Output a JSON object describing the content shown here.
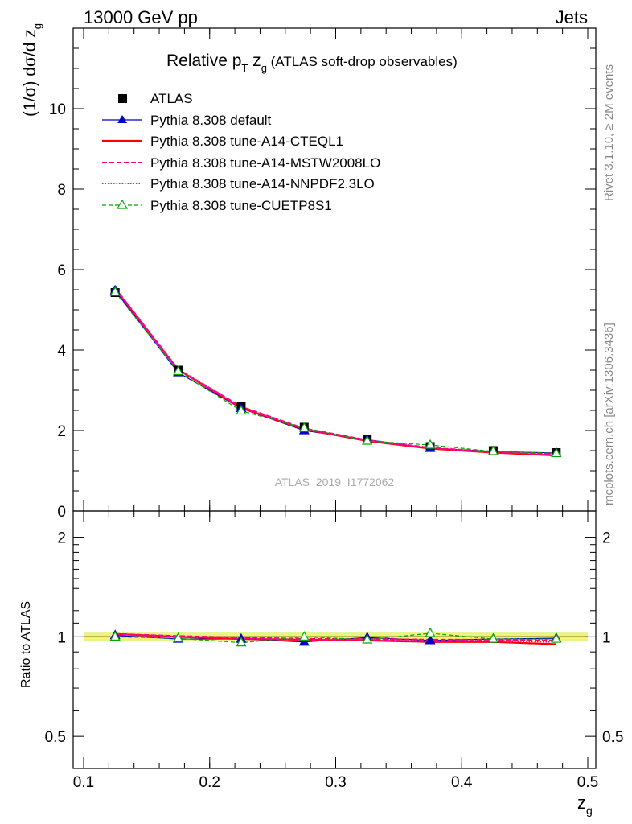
{
  "header": {
    "left": "13000 GeV pp",
    "right": "Jets"
  },
  "side_labels": {
    "rivet": "Rivet 3.1.10, ≥ 2M events",
    "mcplots": "mcplots.cern.ch [arXiv:1306.3436]"
  },
  "chart_data": {
    "type": "line",
    "title": "Relative pT zg (ATLAS soft-drop observables)",
    "title_parts": {
      "main": "Relative p",
      "sub_T": "T",
      "z": " z",
      "sub_g": "g",
      "tail": " (ATLAS soft-drop observables)"
    },
    "analysis_id": "ATLAS_2019_I1772062",
    "xlabel": "z_g",
    "xlabel_parts": {
      "main": "z",
      "sub": "g"
    },
    "ylabel": "(1/σ) dσ/d z_g",
    "ylabel_parts": {
      "main": "(1/σ) dσ/d z",
      "sub": "g"
    },
    "ratio_ylabel": "Ratio to ATLAS",
    "xlim": [
      0.1,
      0.5
    ],
    "ylim": [
      0,
      12
    ],
    "ratio_ylim": [
      0.4,
      2.4
    ],
    "x_ticks": [
      "0.1",
      "0.2",
      "0.3",
      "0.4",
      "0.5"
    ],
    "x_tick_values": [
      0.1,
      0.2,
      0.3,
      0.4,
      0.5
    ],
    "y_ticks": [
      "0",
      "2",
      "4",
      "6",
      "8",
      "10"
    ],
    "y_tick_values": [
      0,
      2,
      4,
      6,
      8,
      10
    ],
    "ratio_ticks": [
      "0.5",
      "1",
      "2"
    ],
    "ratio_tick_values": [
      0.5,
      1,
      2
    ],
    "x": [
      0.125,
      0.175,
      0.225,
      0.275,
      0.325,
      0.375,
      0.425,
      0.475
    ],
    "data": {
      "name": "ATLAS",
      "values": [
        5.43,
        3.5,
        2.6,
        2.08,
        1.78,
        1.6,
        1.5,
        1.45
      ]
    },
    "band_halfwidth": 0.03,
    "legend_position": "top-left",
    "series": [
      {
        "name": "Pythia 8.308 default",
        "color": "#0000cc",
        "dash": "",
        "marker": "triangle-filled",
        "values": [
          5.48,
          3.44,
          2.55,
          2.0,
          1.77,
          1.56,
          1.48,
          1.44
        ],
        "ratio": [
          1.01,
          0.985,
          0.985,
          0.965,
          0.995,
          0.975,
          0.985,
          0.99
        ]
      },
      {
        "name": "Pythia 8.308 tune-A14-CTEQL1",
        "color": "#ff0000",
        "dash": "",
        "marker": "none",
        "values": [
          5.52,
          3.51,
          2.56,
          2.03,
          1.74,
          1.55,
          1.45,
          1.38
        ],
        "ratio": [
          1.02,
          1.0,
          0.985,
          0.98,
          0.975,
          0.965,
          0.965,
          0.95
        ]
      },
      {
        "name": "Pythia 8.308 tune-A14-MSTW2008LO",
        "color": "#ff0066",
        "dash": "6,3",
        "marker": "none",
        "values": [
          5.54,
          3.52,
          2.59,
          2.05,
          1.76,
          1.57,
          1.47,
          1.42
        ],
        "ratio": [
          1.02,
          1.005,
          0.995,
          0.985,
          0.985,
          0.98,
          0.98,
          0.975
        ]
      },
      {
        "name": "Pythia 8.308 tune-A14-NNPDF2.3LO",
        "color": "#ff00cc",
        "dash": "1.5,2",
        "marker": "none",
        "values": [
          5.53,
          3.51,
          2.58,
          2.04,
          1.75,
          1.56,
          1.46,
          1.4
        ],
        "ratio": [
          1.02,
          1.0,
          0.99,
          0.98,
          0.98,
          0.97,
          0.975,
          0.965
        ]
      },
      {
        "name": "Pythia 8.308 tune-CUETP8S1",
        "color": "#00aa00",
        "dash": "5,3",
        "marker": "triangle-open",
        "values": [
          5.44,
          3.47,
          2.49,
          2.06,
          1.74,
          1.64,
          1.48,
          1.43
        ],
        "ratio": [
          1.0,
          0.99,
          0.96,
          1.0,
          0.98,
          1.025,
          0.985,
          0.985
        ]
      }
    ]
  }
}
